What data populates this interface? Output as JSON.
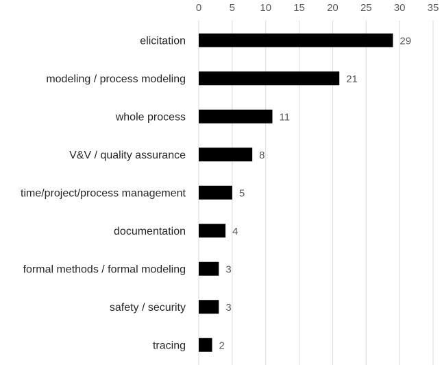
{
  "chart_data": {
    "type": "bar",
    "orientation": "horizontal",
    "categories": [
      "elicitation",
      "modeling / process modeling",
      "whole process",
      "V&V / quality assurance",
      "time/project/process management",
      "documentation",
      "formal methods / formal modeling",
      "safety / security",
      "tracing"
    ],
    "values": [
      29,
      21,
      11,
      8,
      5,
      4,
      3,
      3,
      2
    ],
    "data_labels": [
      "29",
      "21",
      "11",
      "8",
      "5",
      "4",
      "3",
      "3",
      "2"
    ],
    "xlim": [
      0,
      35
    ],
    "ticks": [
      "0",
      "5",
      "10",
      "15",
      "20",
      "25",
      "30",
      "35"
    ],
    "x_axis_position": "top",
    "grid": true,
    "legend": "none",
    "bar_color": "#000000",
    "grid_color": "#d9d9d9"
  }
}
